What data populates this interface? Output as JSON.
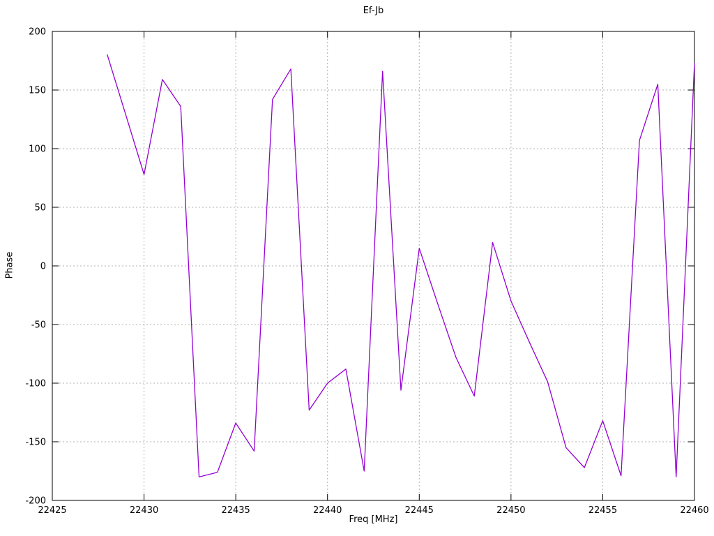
{
  "title": "Ef-Jb",
  "chart_data": {
    "type": "line",
    "title": "Ef-Jb",
    "xlabel": "Freq [MHz]",
    "ylabel": "Phase",
    "xlim": [
      22425,
      22460
    ],
    "ylim": [
      -200,
      200
    ],
    "xticks": [
      22425,
      22430,
      22435,
      22440,
      22445,
      22450,
      22455,
      22460
    ],
    "yticks": [
      -200,
      -150,
      -100,
      -50,
      0,
      50,
      100,
      150,
      200
    ],
    "grid": true,
    "legend_position": "none",
    "line_color": "#9400d3",
    "background_color": "#ffffff",
    "series": [
      {
        "name": "Ef-Jb",
        "color": "#9400d3",
        "x": [
          22428,
          22429,
          22430,
          22431,
          22432,
          22433,
          22434,
          22435,
          22436,
          22437,
          22438,
          22439,
          22440,
          22441,
          22442,
          22443,
          22444,
          22445,
          22446,
          22447,
          22448,
          22449,
          22450,
          22451,
          22452,
          22453,
          22454,
          22455,
          22456,
          22457,
          22458,
          22459,
          22460
        ],
        "y": [
          180,
          129,
          78,
          159,
          136,
          -180,
          -176,
          -134,
          -158,
          142,
          168,
          -123,
          -100,
          -88,
          -175,
          166,
          -106,
          15,
          -32,
          -78,
          -111,
          20,
          -30,
          -65,
          -99,
          -155,
          -172,
          -132,
          -179,
          107,
          155,
          -180,
          173
        ]
      }
    ]
  }
}
